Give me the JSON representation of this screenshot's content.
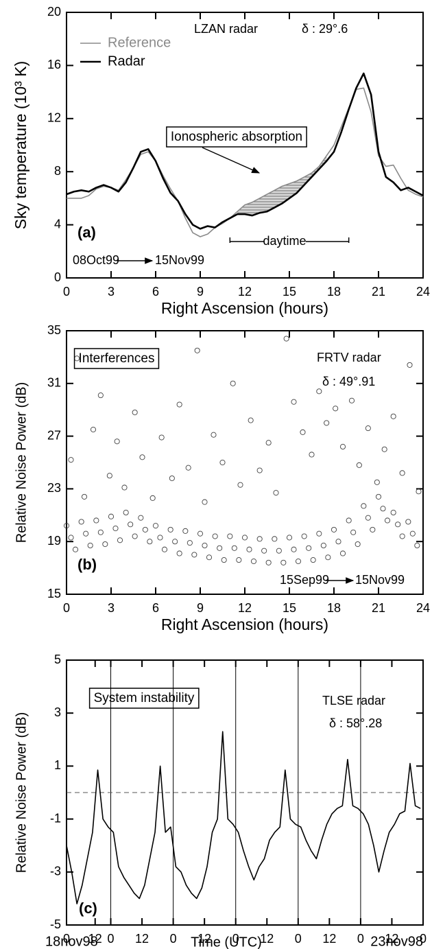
{
  "chart_data": [
    {
      "type": "line",
      "xlabel": "Right Ascension (hours)",
      "ylabel": "Sky temperature (10³ K)",
      "xlim": [
        0,
        24
      ],
      "ylim": [
        0,
        20
      ],
      "xticks": [
        0,
        3,
        6,
        9,
        12,
        15,
        18,
        21,
        24
      ],
      "yticks": [
        0,
        4,
        8,
        12,
        16,
        20
      ],
      "legend": "upper left",
      "annotations": {
        "radar": "LZAN radar",
        "delta": "δ : 29°.6",
        "box": "Ionospheric absorption",
        "panel": "(a)",
        "daytime": "daytime",
        "from": "08Oct99",
        "to": "15Nov99"
      },
      "shade_range": [
        11.5,
        17.5
      ],
      "daytime_range": [
        11,
        19
      ],
      "x": [
        0,
        0.5,
        1,
        1.5,
        2,
        2.5,
        3,
        3.5,
        4,
        4.5,
        5,
        5.5,
        6,
        6.5,
        7,
        7.5,
        8,
        8.5,
        9,
        9.5,
        10,
        10.5,
        11,
        11.5,
        12,
        12.5,
        13,
        13.5,
        14,
        14.5,
        15,
        15.5,
        16,
        16.5,
        17,
        17.5,
        18,
        18.5,
        19,
        19.5,
        20,
        20.5,
        21,
        21.5,
        22,
        22.5,
        23,
        23.5,
        24
      ],
      "series": [
        {
          "name": "Reference",
          "color": "#8a8a8a",
          "width": 1.6,
          "values": [
            6.0,
            6.0,
            6.0,
            6.2,
            6.7,
            6.9,
            6.8,
            6.6,
            7.4,
            8.3,
            9.3,
            9.5,
            8.8,
            7.7,
            6.7,
            5.8,
            4.5,
            3.4,
            3.1,
            3.3,
            3.8,
            4.1,
            4.5,
            5.0,
            5.5,
            5.7,
            6.0,
            6.3,
            6.6,
            6.9,
            7.1,
            7.3,
            7.6,
            7.9,
            8.4,
            9.2,
            10.0,
            11.4,
            12.8,
            14.2,
            14.3,
            12.5,
            9.2,
            8.4,
            8.5,
            7.5,
            6.6,
            6.3,
            6.1
          ]
        },
        {
          "name": "Radar",
          "color": "#000000",
          "width": 2.6,
          "values": [
            6.3,
            6.5,
            6.6,
            6.5,
            6.8,
            7.0,
            6.8,
            6.5,
            7.2,
            8.3,
            9.5,
            9.7,
            8.8,
            7.5,
            6.4,
            5.8,
            4.8,
            4.0,
            3.7,
            3.9,
            3.8,
            4.2,
            4.5,
            4.8,
            4.8,
            4.7,
            4.9,
            5.0,
            5.3,
            5.6,
            6.0,
            6.4,
            7.0,
            7.6,
            8.2,
            8.8,
            9.5,
            11.0,
            12.7,
            14.3,
            15.4,
            13.8,
            9.5,
            7.6,
            7.2,
            6.6,
            6.8,
            6.5,
            6.2
          ]
        }
      ]
    },
    {
      "type": "scatter",
      "xlabel": "Right Ascension (hours)",
      "ylabel": "Relative Noise Power (dB)",
      "xlim": [
        0,
        24
      ],
      "ylim": [
        15,
        35
      ],
      "xticks": [
        0,
        3,
        6,
        9,
        12,
        15,
        18,
        21,
        24
      ],
      "yticks": [
        15,
        19,
        23,
        27,
        31,
        35
      ],
      "annotations": {
        "box": "Interferences",
        "radar": "FRTV radar",
        "delta": "δ : 49°.91",
        "panel": "(b)",
        "from": "15Sep99",
        "to": "15Nov99"
      },
      "x": [
        0,
        0.3,
        0.6,
        1,
        1.3,
        1.6,
        2,
        2.3,
        2.6,
        3,
        3.3,
        3.6,
        4,
        4.3,
        4.6,
        5,
        5.3,
        5.6,
        6,
        6.3,
        6.6,
        7,
        7.3,
        7.6,
        8,
        8.3,
        8.6,
        9,
        9.3,
        9.6,
        10,
        10.3,
        10.6,
        11,
        11.3,
        11.6,
        12,
        12.3,
        12.6,
        13,
        13.3,
        13.6,
        14,
        14.3,
        14.6,
        15,
        15.3,
        15.6,
        16,
        16.3,
        16.6,
        17,
        17.3,
        17.6,
        18,
        18.3,
        18.6,
        19,
        19.3,
        19.6,
        20,
        20.3,
        20.6,
        21,
        21.3,
        21.6,
        22,
        22.3,
        22.6,
        23,
        23.3,
        23.6,
        0.3,
        0.7,
        1.2,
        1.8,
        2.3,
        2.9,
        3.4,
        3.9,
        4.6,
        5.1,
        5.8,
        6.4,
        7.1,
        7.6,
        8.2,
        8.8,
        9.3,
        9.9,
        10.5,
        11.2,
        11.7,
        12.4,
        13.0,
        13.6,
        14.1,
        14.8,
        15.3,
        15.9,
        16.5,
        17.0,
        17.5,
        18.1,
        18.6,
        19.2,
        19.7,
        20.3,
        20.9,
        21.4,
        22.0,
        22.6,
        23.1,
        23.7
      ],
      "series": [
        {
          "color": "#404040",
          "values": [
            20.2,
            19.3,
            18.4,
            20.5,
            19.6,
            18.7,
            20.6,
            19.7,
            18.8,
            20.9,
            20.0,
            19.1,
            21.2,
            20.3,
            19.4,
            20.8,
            19.9,
            19.0,
            20.2,
            19.3,
            18.4,
            19.9,
            19.0,
            18.1,
            19.8,
            18.9,
            18.0,
            19.6,
            18.7,
            17.8,
            19.4,
            18.5,
            17.6,
            19.4,
            18.5,
            17.6,
            19.3,
            18.4,
            17.5,
            19.2,
            18.3,
            17.4,
            19.2,
            18.3,
            17.4,
            19.3,
            18.4,
            17.5,
            19.4,
            18.5,
            17.6,
            19.6,
            18.7,
            17.8,
            19.9,
            19.0,
            18.1,
            20.6,
            19.7,
            18.8,
            21.7,
            20.8,
            19.9,
            22.4,
            21.5,
            20.6,
            21.2,
            20.3,
            19.4,
            20.5,
            19.6,
            18.7,
            25.2,
            32.9,
            22.4,
            27.5,
            30.1,
            24.0,
            26.6,
            23.1,
            28.8,
            25.4,
            22.3,
            26.9,
            23.8,
            29.4,
            24.6,
            33.5,
            22.0,
            27.1,
            25.0,
            31.0,
            23.3,
            28.2,
            24.4,
            26.5,
            22.7,
            34.4,
            29.6,
            27.3,
            25.6,
            30.4,
            28.0,
            29.1,
            26.2,
            29.7,
            24.8,
            27.6,
            23.5,
            26.0,
            28.5,
            24.2,
            32.4,
            22.8
          ]
        }
      ]
    },
    {
      "type": "line",
      "xlabel": "Time (UTC)",
      "ylabel": "Relative Noise Power (dB)",
      "xlim": [
        0,
        137
      ],
      "ylim": [
        -5,
        5
      ],
      "xticks": [
        {
          "value": 0,
          "label": "0"
        },
        {
          "value": 11,
          "label": "12"
        },
        {
          "value": 17,
          "label": "0"
        },
        {
          "value": 29,
          "label": "12"
        },
        {
          "value": 41,
          "label": "0"
        },
        {
          "value": 53,
          "label": "12"
        },
        {
          "value": 65,
          "label": "0"
        },
        {
          "value": 77,
          "label": "12"
        },
        {
          "value": 89,
          "label": "0"
        },
        {
          "value": 101,
          "label": "12"
        },
        {
          "value": 113,
          "label": "0"
        },
        {
          "value": 125,
          "label": "12"
        },
        {
          "value": 137,
          "label": "0"
        }
      ],
      "yticks": [
        -5,
        -3,
        -1,
        1,
        3,
        5
      ],
      "hline": 0,
      "day_lines": true,
      "annotations": {
        "box": "System instability",
        "radar": "TLSE radar",
        "delta": "δ : 58°.28",
        "panel": "(c)",
        "from": "18nov98",
        "to": "23nov98"
      },
      "x": [
        0,
        2,
        4,
        6,
        8,
        10,
        12,
        14,
        16,
        18,
        20,
        22,
        24,
        26,
        28,
        30,
        32,
        34,
        36,
        38,
        40,
        42,
        44,
        46,
        48,
        50,
        52,
        54,
        56,
        58,
        60,
        62,
        64,
        66,
        68,
        70,
        72,
        74,
        76,
        78,
        80,
        82,
        84,
        86,
        88,
        90,
        92,
        94,
        96,
        98,
        100,
        102,
        104,
        106,
        108,
        110,
        112,
        114,
        116,
        118,
        120,
        122,
        124,
        126,
        128,
        130,
        132,
        134,
        136
      ],
      "series": [
        {
          "color": "#000000",
          "width": 1.6,
          "values": [
            -2.0,
            -3.0,
            -4.2,
            -3.5,
            -2.5,
            -1.5,
            0.85,
            -1.0,
            -1.3,
            -1.5,
            -2.8,
            -3.2,
            -3.5,
            -3.8,
            -4.0,
            -3.5,
            -2.5,
            -1.5,
            1.0,
            -1.5,
            -1.3,
            -2.8,
            -3.0,
            -3.5,
            -3.8,
            -4.0,
            -3.6,
            -2.8,
            -1.5,
            -1.0,
            2.3,
            -1.0,
            -1.2,
            -1.5,
            -2.2,
            -2.8,
            -3.3,
            -2.8,
            -2.5,
            -1.8,
            -1.5,
            -1.3,
            0.85,
            -1.0,
            -1.2,
            -1.3,
            -1.8,
            -2.2,
            -2.5,
            -1.8,
            -1.2,
            -0.8,
            -0.6,
            -0.5,
            1.25,
            -0.5,
            -0.6,
            -0.8,
            -1.2,
            -2.0,
            -3.0,
            -2.2,
            -1.5,
            -1.2,
            -0.8,
            -0.7,
            1.1,
            -0.5,
            -0.6
          ]
        }
      ]
    }
  ]
}
